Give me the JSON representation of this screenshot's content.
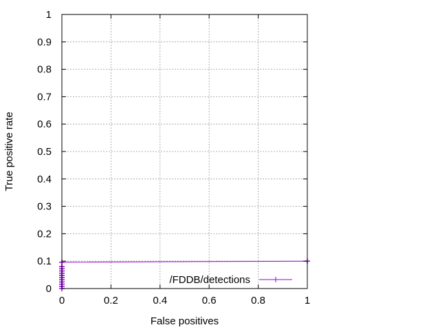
{
  "chart_data": {
    "type": "line",
    "title": "",
    "xlabel": "False positives",
    "ylabel": "True positive rate",
    "xlim": [
      0,
      1
    ],
    "ylim": [
      0,
      1
    ],
    "x_ticks": [
      "0",
      "0.2",
      "0.4",
      "0.6",
      "0.8",
      "1"
    ],
    "y_ticks": [
      "0",
      "0.1",
      "0.2",
      "0.3",
      "0.4",
      "0.5",
      "0.6",
      "0.7",
      "0.8",
      "0.9",
      "1"
    ],
    "grid": true,
    "legend_position": "bottom-right",
    "series": [
      {
        "name": "/FDDB/detections",
        "color": "#9400d3",
        "marker": "plus",
        "x": [
          0,
          0,
          0,
          0,
          0,
          0,
          0,
          0,
          0,
          0,
          0,
          0,
          1
        ],
        "y": [
          0,
          0.008,
          0.016,
          0.024,
          0.032,
          0.04,
          0.048,
          0.056,
          0.064,
          0.072,
          0.08,
          0.096,
          0.1
        ]
      }
    ]
  }
}
